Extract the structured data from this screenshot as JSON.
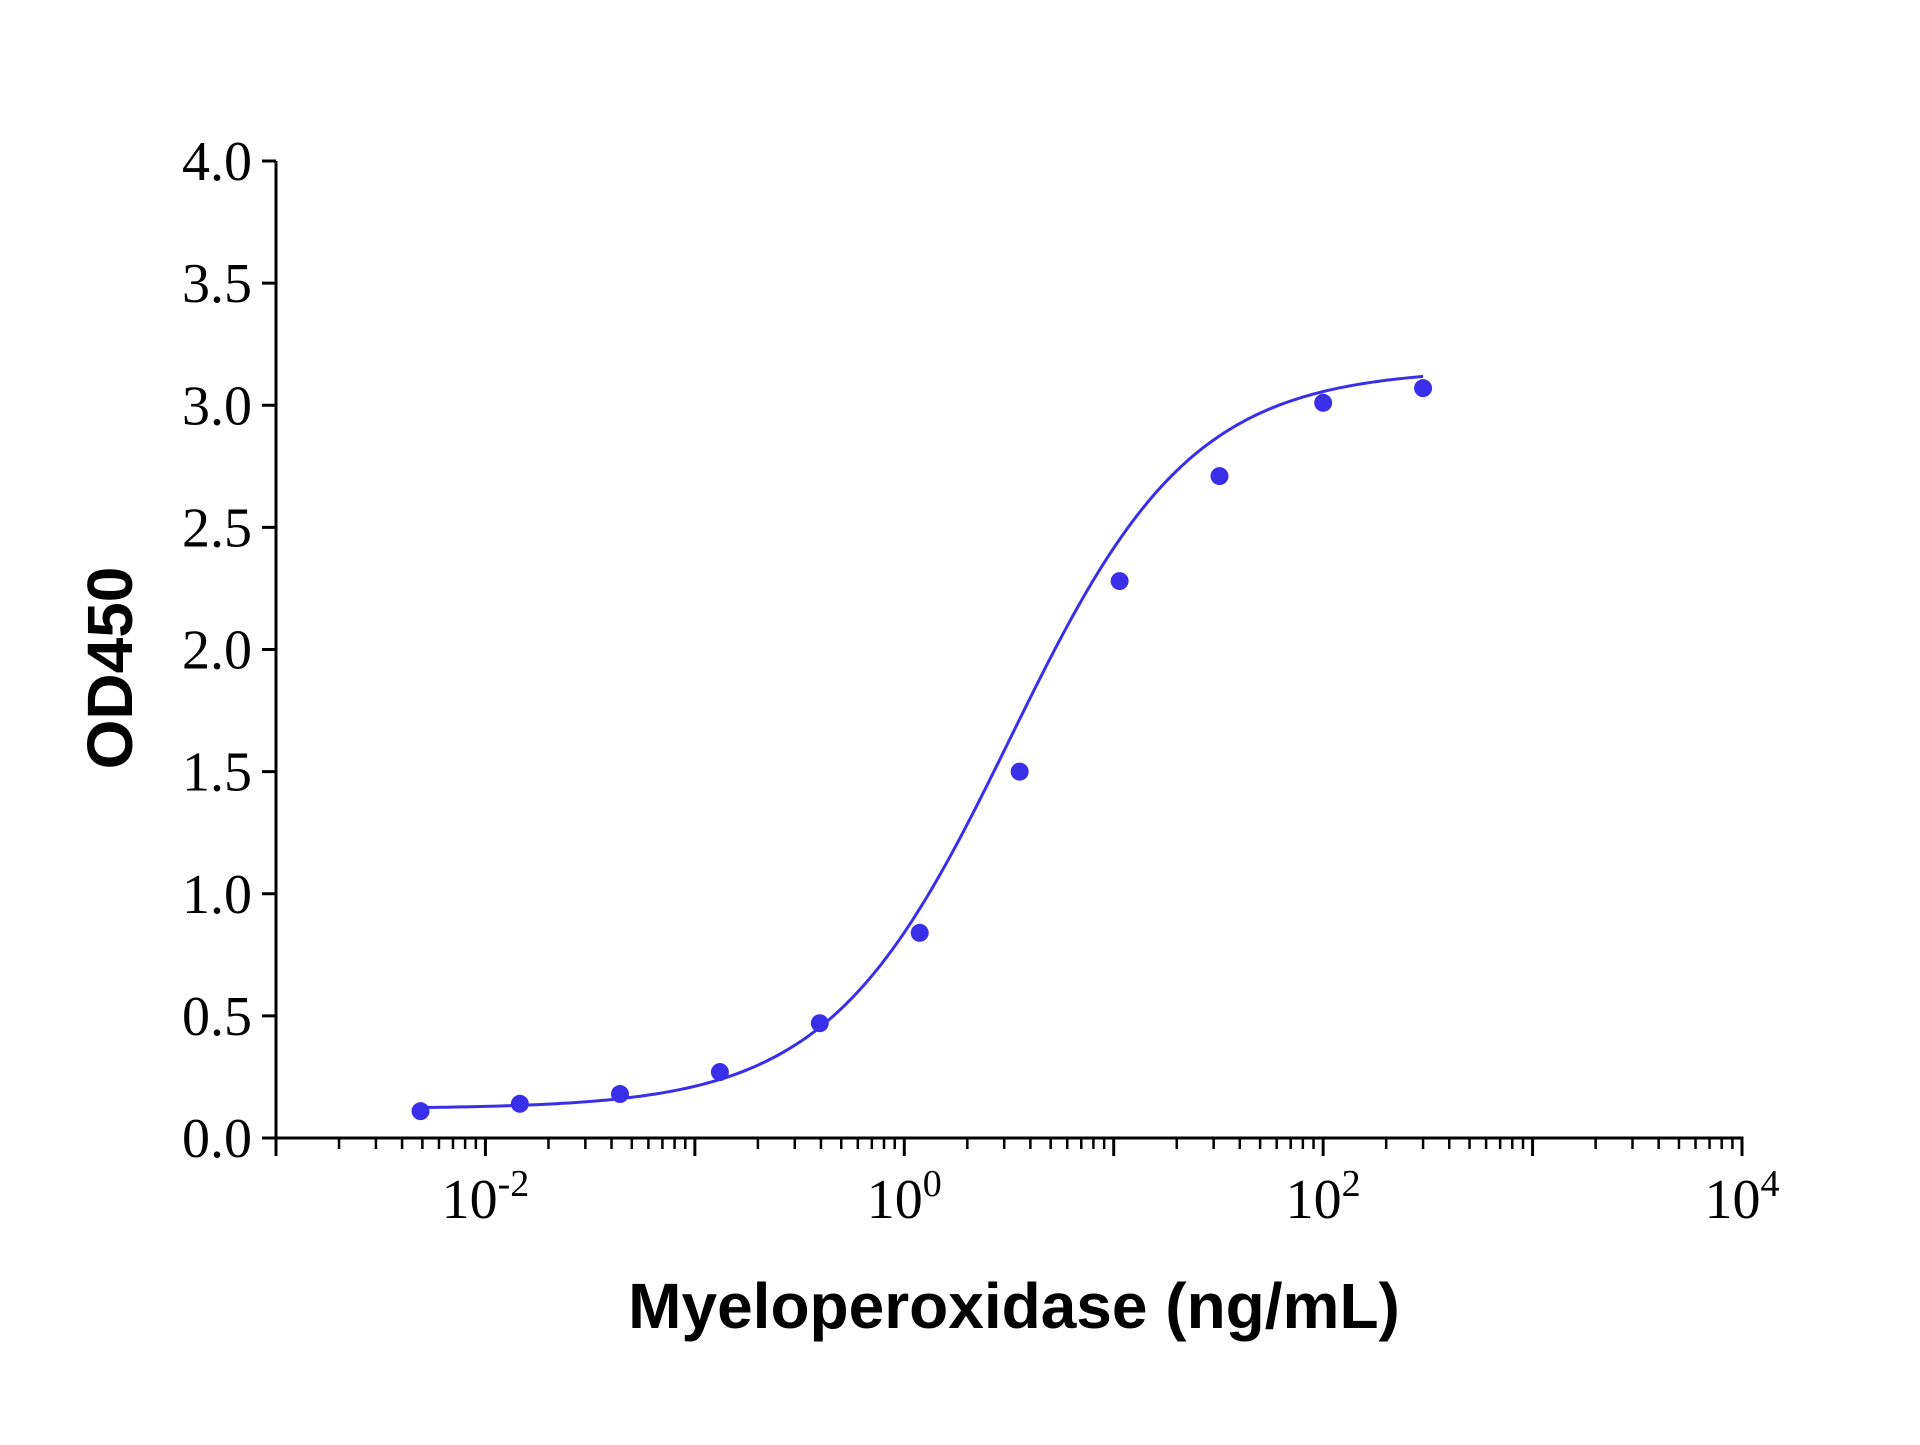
{
  "chart_data": {
    "type": "scatter",
    "xlabel": "Myeloperoxidase (ng/mL)",
    "ylabel": "OD450",
    "x_scale": "log10",
    "xlim": [
      0.001,
      10000
    ],
    "ylim": [
      0,
      4.0
    ],
    "x_tick_labels": [
      {
        "base": "10",
        "exponent": "-2",
        "value": 0.01
      },
      {
        "base": "10",
        "exponent": "0",
        "value": 1
      },
      {
        "base": "10",
        "exponent": "2",
        "value": 100
      },
      {
        "base": "10",
        "exponent": "4",
        "value": 10000
      }
    ],
    "y_ticks": [
      0.0,
      0.5,
      1.0,
      1.5,
      2.0,
      2.5,
      3.0,
      3.5,
      4.0
    ],
    "y_tick_labels": [
      "0.0",
      "0.5",
      "1.0",
      "1.5",
      "2.0",
      "2.5",
      "3.0",
      "3.5",
      "4.0"
    ],
    "grid": false,
    "series": [
      {
        "x": [
          0.0049,
          0.0146,
          0.0439,
          0.1317,
          0.395,
          1.185,
          3.556,
          10.67,
          32.0,
          100.0,
          300.0
        ],
        "y": [
          0.11,
          0.14,
          0.18,
          0.27,
          0.47,
          0.84,
          1.5,
          2.28,
          2.71,
          3.01,
          3.07
        ],
        "fit": "4-parameter logistic",
        "color": "#3a2fe8"
      }
    ],
    "fit_params": {
      "bottom": 0.12,
      "top": 3.15,
      "ec50": 3.2,
      "hill": 1.0
    }
  }
}
